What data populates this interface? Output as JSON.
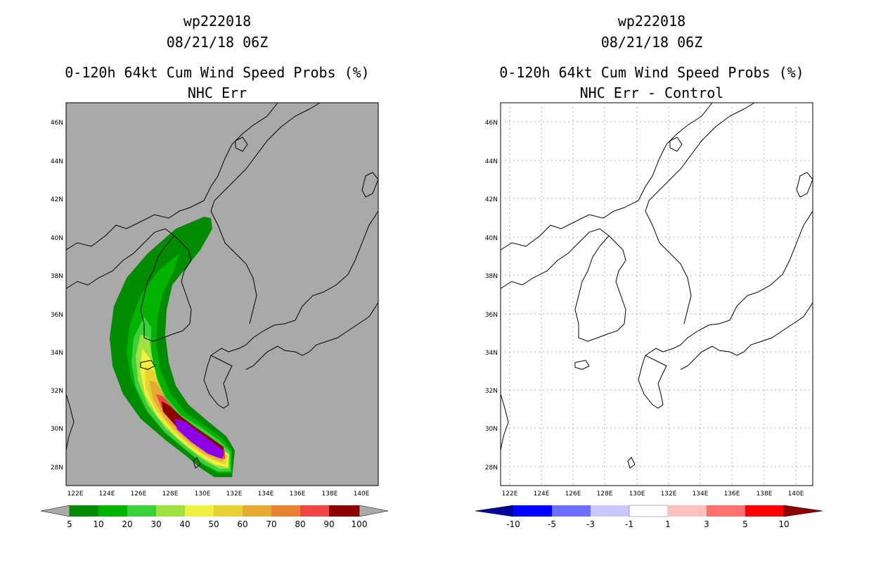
{
  "panels": [
    {
      "storm_id": "wp222018",
      "datetime": "08/21/18 06Z",
      "product": "0-120h 64kt Cum Wind Speed Probs (%)",
      "subtitle": "NHC Err",
      "background": "#a9a9a9",
      "colorbar": {
        "labels": [
          "5",
          "10",
          "20",
          "30",
          "40",
          "50",
          "60",
          "70",
          "80",
          "90",
          "100"
        ],
        "colors": [
          "#008c00",
          "#00b400",
          "#3cd03c",
          "#a0e040",
          "#f0f040",
          "#e6d232",
          "#e6aa32",
          "#e68232",
          "#f04646",
          "#8c0000",
          "#8c00e6"
        ],
        "end_low": "#a9a9a9",
        "end_high": "#a9a9a9"
      }
    },
    {
      "storm_id": "wp222018",
      "datetime": "08/21/18 06Z",
      "product": "0-120h 64kt Cum Wind Speed Probs (%)",
      "subtitle": "NHC Err - Control",
      "background": "#ffffff",
      "colorbar": {
        "labels": [
          "-10",
          "-5",
          "-3",
          "-1",
          "1",
          "3",
          "5",
          "10"
        ],
        "colors": [
          "#0000c8",
          "#0000ff",
          "#6e6eff",
          "#c8c8ff",
          "#ffffff",
          "#ffc0c0",
          "#ff7070",
          "#ff0000"
        ],
        "end_low": "#0000a0",
        "end_high": "#8c0000"
      }
    }
  ],
  "map": {
    "lon_ticks": [
      "122E",
      "124E",
      "126E",
      "128E",
      "130E",
      "132E",
      "134E",
      "136E",
      "138E",
      "140E"
    ],
    "lat_ticks": [
      "28N",
      "30N",
      "32N",
      "34N",
      "36N",
      "38N",
      "40N",
      "42N",
      "44N",
      "46N"
    ]
  }
}
